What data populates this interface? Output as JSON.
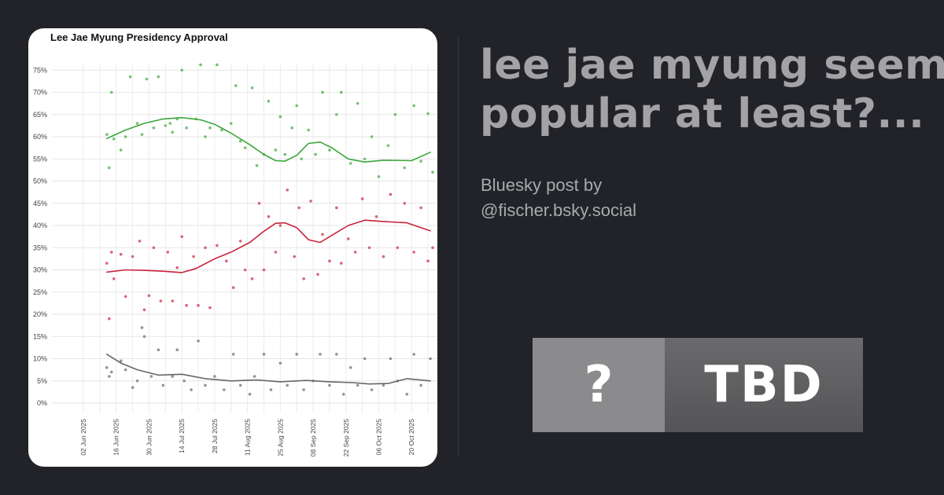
{
  "post": {
    "headline_line1": "lee jae myung seems",
    "headline_line2": "popular at least?...",
    "byline_line1": "Bluesky post by",
    "byline_line2": "@fischer.bsky.social"
  },
  "badge": {
    "question": "?",
    "label": "TBD"
  },
  "colors": {
    "background": "#212328",
    "approve": "#3aa63a",
    "disapprove": "#c8243c",
    "undecided": "#666666"
  },
  "chart_data": {
    "type": "scatter",
    "title": "Lee Jae Myung Presidency Approval",
    "xlabel": "",
    "ylabel": "",
    "y_ticks": [
      "0%",
      "5%",
      "10%",
      "15%",
      "20%",
      "25%",
      "30%",
      "35%",
      "40%",
      "45%",
      "50%",
      "55%",
      "60%",
      "65%",
      "70%",
      "75%"
    ],
    "x_ticks": [
      "02 Jun 2025",
      "16 Jun 2025",
      "30 Jun 2025",
      "14 Jul 2025",
      "28 Jul 2025",
      "11 Aug 2025",
      "25 Aug 2025",
      "08 Sep 2025",
      "22 Sep 2025",
      "06 Oct 2025",
      "20 Oct 2025"
    ],
    "x_start": "2025-06-02",
    "ylim": [
      0,
      77
    ],
    "grid": true,
    "series": [
      {
        "color": "#3aa63a",
        "trend": [
          [
            "2025-06-12",
            59.6
          ],
          [
            "2025-06-20",
            61.5
          ],
          [
            "2025-06-28",
            63
          ],
          [
            "2025-07-06",
            64
          ],
          [
            "2025-07-14",
            64.3
          ],
          [
            "2025-07-22",
            63.8
          ],
          [
            "2025-07-28",
            62.8
          ],
          [
            "2025-08-04",
            60.8
          ],
          [
            "2025-08-12",
            58.2
          ],
          [
            "2025-08-18",
            56
          ],
          [
            "2025-08-23",
            54.6
          ],
          [
            "2025-08-27",
            54.5
          ],
          [
            "2025-09-01",
            55.8
          ],
          [
            "2025-09-06",
            58.5
          ],
          [
            "2025-09-11",
            58.8
          ],
          [
            "2025-09-16",
            57.5
          ],
          [
            "2025-09-23",
            55
          ],
          [
            "2025-09-30",
            54.3
          ],
          [
            "2025-10-08",
            54.7
          ],
          [
            "2025-10-20",
            54.6
          ],
          [
            "2025-10-28",
            56.5
          ]
        ],
        "points": [
          [
            "2025-06-12",
            60.5
          ],
          [
            "2025-06-13",
            53
          ],
          [
            "2025-06-14",
            70
          ],
          [
            "2025-06-15",
            59.5
          ],
          [
            "2025-06-18",
            57
          ],
          [
            "2025-06-20",
            60
          ],
          [
            "2025-06-22",
            73.5
          ],
          [
            "2025-06-25",
            63
          ],
          [
            "2025-06-27",
            60.5
          ],
          [
            "2025-06-29",
            73
          ],
          [
            "2025-07-02",
            62
          ],
          [
            "2025-07-04",
            73.5
          ],
          [
            "2025-07-07",
            62.5
          ],
          [
            "2025-07-09",
            63
          ],
          [
            "2025-07-10",
            61
          ],
          [
            "2025-07-12",
            64
          ],
          [
            "2025-07-14",
            75
          ],
          [
            "2025-07-16",
            62
          ],
          [
            "2025-07-20",
            64
          ],
          [
            "2025-07-22",
            76.2
          ],
          [
            "2025-07-24",
            60
          ],
          [
            "2025-07-26",
            62
          ],
          [
            "2025-07-29",
            76.2
          ],
          [
            "2025-07-31",
            61.5
          ],
          [
            "2025-08-04",
            63
          ],
          [
            "2025-08-06",
            71.5
          ],
          [
            "2025-08-08",
            59
          ],
          [
            "2025-08-10",
            57.5
          ],
          [
            "2025-08-13",
            71
          ],
          [
            "2025-08-15",
            53.5
          ],
          [
            "2025-08-18",
            56
          ],
          [
            "2025-08-20",
            68
          ],
          [
            "2025-08-23",
            57
          ],
          [
            "2025-08-25",
            64.5
          ],
          [
            "2025-08-27",
            56
          ],
          [
            "2025-08-30",
            62
          ],
          [
            "2025-09-01",
            67
          ],
          [
            "2025-09-03",
            55
          ],
          [
            "2025-09-06",
            61.5
          ],
          [
            "2025-09-09",
            56
          ],
          [
            "2025-09-12",
            70
          ],
          [
            "2025-09-15",
            57
          ],
          [
            "2025-09-18",
            65
          ],
          [
            "2025-09-20",
            70
          ],
          [
            "2025-09-24",
            54
          ],
          [
            "2025-09-27",
            67.5
          ],
          [
            "2025-09-30",
            55
          ],
          [
            "2025-10-03",
            60
          ],
          [
            "2025-10-06",
            51
          ],
          [
            "2025-10-10",
            58
          ],
          [
            "2025-10-13",
            65
          ],
          [
            "2025-10-17",
            53
          ],
          [
            "2025-10-21",
            67
          ],
          [
            "2025-10-24",
            54.5
          ],
          [
            "2025-10-27",
            65.2
          ],
          [
            "2025-10-29",
            52
          ]
        ]
      },
      {
        "color": "#c8243c",
        "trend": [
          [
            "2025-06-12",
            29.5
          ],
          [
            "2025-06-20",
            30
          ],
          [
            "2025-06-28",
            29.9
          ],
          [
            "2025-07-06",
            29.7
          ],
          [
            "2025-07-14",
            29.4
          ],
          [
            "2025-07-20",
            30.3
          ],
          [
            "2025-07-28",
            32.5
          ],
          [
            "2025-08-04",
            34
          ],
          [
            "2025-08-12",
            36.2
          ],
          [
            "2025-08-18",
            38.7
          ],
          [
            "2025-08-23",
            40.5
          ],
          [
            "2025-08-27",
            40.6
          ],
          [
            "2025-09-01",
            39.5
          ],
          [
            "2025-09-06",
            36.8
          ],
          [
            "2025-09-11",
            36.2
          ],
          [
            "2025-09-16",
            37.8
          ],
          [
            "2025-09-23",
            40
          ],
          [
            "2025-09-30",
            41.2
          ],
          [
            "2025-10-08",
            40.9
          ],
          [
            "2025-10-18",
            40.6
          ],
          [
            "2025-10-28",
            38.8
          ]
        ],
        "points": [
          [
            "2025-06-12",
            31.5
          ],
          [
            "2025-06-13",
            19
          ],
          [
            "2025-06-14",
            34
          ],
          [
            "2025-06-15",
            28
          ],
          [
            "2025-06-18",
            33.5
          ],
          [
            "2025-06-20",
            24
          ],
          [
            "2025-06-23",
            33
          ],
          [
            "2025-06-26",
            36.5
          ],
          [
            "2025-06-28",
            21
          ],
          [
            "2025-06-30",
            24.2
          ],
          [
            "2025-07-02",
            35
          ],
          [
            "2025-07-05",
            23
          ],
          [
            "2025-07-08",
            34
          ],
          [
            "2025-07-10",
            23
          ],
          [
            "2025-07-12",
            30.5
          ],
          [
            "2025-07-14",
            37.5
          ],
          [
            "2025-07-16",
            22
          ],
          [
            "2025-07-19",
            33
          ],
          [
            "2025-07-21",
            22
          ],
          [
            "2025-07-24",
            35
          ],
          [
            "2025-07-26",
            21.5
          ],
          [
            "2025-07-29",
            35.5
          ],
          [
            "2025-08-02",
            32
          ],
          [
            "2025-08-05",
            26
          ],
          [
            "2025-08-08",
            36.5
          ],
          [
            "2025-08-10",
            30
          ],
          [
            "2025-08-13",
            28
          ],
          [
            "2025-08-16",
            45
          ],
          [
            "2025-08-18",
            30
          ],
          [
            "2025-08-20",
            42
          ],
          [
            "2025-08-23",
            34
          ],
          [
            "2025-08-25",
            40
          ],
          [
            "2025-08-28",
            48
          ],
          [
            "2025-08-31",
            33
          ],
          [
            "2025-09-02",
            44
          ],
          [
            "2025-09-04",
            28
          ],
          [
            "2025-09-07",
            45.5
          ],
          [
            "2025-09-10",
            29
          ],
          [
            "2025-09-12",
            38
          ],
          [
            "2025-09-15",
            32
          ],
          [
            "2025-09-18",
            44
          ],
          [
            "2025-09-20",
            31.5
          ],
          [
            "2025-09-23",
            37
          ],
          [
            "2025-09-26",
            34
          ],
          [
            "2025-09-29",
            46
          ],
          [
            "2025-10-02",
            35
          ],
          [
            "2025-10-05",
            42
          ],
          [
            "2025-10-08",
            33
          ],
          [
            "2025-10-11",
            47
          ],
          [
            "2025-10-14",
            35
          ],
          [
            "2025-10-17",
            45
          ],
          [
            "2025-10-21",
            34
          ],
          [
            "2025-10-24",
            44
          ],
          [
            "2025-10-27",
            32
          ],
          [
            "2025-10-29",
            35
          ]
        ]
      },
      {
        "color": "#666666",
        "trend": [
          [
            "2025-06-12",
            11
          ],
          [
            "2025-06-18",
            9
          ],
          [
            "2025-06-25",
            7.5
          ],
          [
            "2025-07-04",
            6.3
          ],
          [
            "2025-07-14",
            6.5
          ],
          [
            "2025-07-24",
            5.5
          ],
          [
            "2025-08-04",
            5
          ],
          [
            "2025-08-15",
            5.2
          ],
          [
            "2025-08-25",
            4.8
          ],
          [
            "2025-09-05",
            5.1
          ],
          [
            "2025-09-15",
            4.8
          ],
          [
            "2025-09-25",
            4.6
          ],
          [
            "2025-10-02",
            4.3
          ],
          [
            "2025-10-10",
            4.4
          ],
          [
            "2025-10-18",
            5.5
          ],
          [
            "2025-10-28",
            5
          ]
        ],
        "points": [
          [
            "2025-06-12",
            8
          ],
          [
            "2025-06-13",
            6
          ],
          [
            "2025-06-14",
            7
          ],
          [
            "2025-06-18",
            9.5
          ],
          [
            "2025-06-20",
            7.5
          ],
          [
            "2025-06-23",
            3.5
          ],
          [
            "2025-06-25",
            5
          ],
          [
            "2025-06-27",
            17
          ],
          [
            "2025-06-28",
            15
          ],
          [
            "2025-07-01",
            6
          ],
          [
            "2025-07-04",
            12
          ],
          [
            "2025-07-06",
            4
          ],
          [
            "2025-07-10",
            6
          ],
          [
            "2025-07-12",
            12
          ],
          [
            "2025-07-15",
            5
          ],
          [
            "2025-07-18",
            3
          ],
          [
            "2025-07-21",
            14
          ],
          [
            "2025-07-24",
            4
          ],
          [
            "2025-07-28",
            6
          ],
          [
            "2025-08-01",
            3
          ],
          [
            "2025-08-05",
            11
          ],
          [
            "2025-08-08",
            4
          ],
          [
            "2025-08-12",
            2
          ],
          [
            "2025-08-14",
            6
          ],
          [
            "2025-08-18",
            11
          ],
          [
            "2025-08-21",
            3
          ],
          [
            "2025-08-25",
            9
          ],
          [
            "2025-08-28",
            4
          ],
          [
            "2025-09-01",
            11
          ],
          [
            "2025-09-04",
            3
          ],
          [
            "2025-09-08",
            5
          ],
          [
            "2025-09-11",
            11
          ],
          [
            "2025-09-15",
            4
          ],
          [
            "2025-09-18",
            11
          ],
          [
            "2025-09-21",
            2
          ],
          [
            "2025-09-24",
            8
          ],
          [
            "2025-09-27",
            4
          ],
          [
            "2025-09-30",
            10
          ],
          [
            "2025-10-03",
            3
          ],
          [
            "2025-10-08",
            4
          ],
          [
            "2025-10-11",
            10
          ],
          [
            "2025-10-14",
            5
          ],
          [
            "2025-10-18",
            2
          ],
          [
            "2025-10-21",
            11
          ],
          [
            "2025-10-24",
            4
          ],
          [
            "2025-10-28",
            10
          ]
        ]
      }
    ]
  }
}
